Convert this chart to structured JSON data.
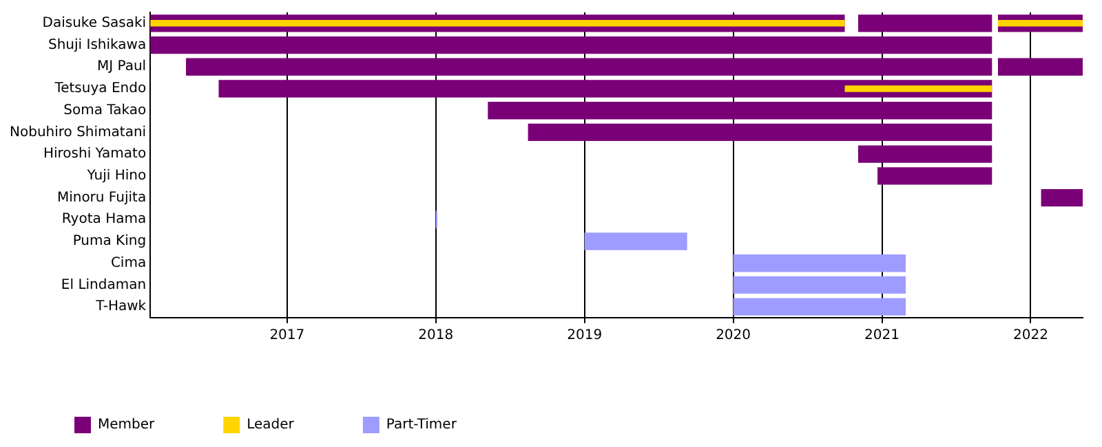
{
  "chart_data": {
    "type": "bar",
    "orientation": "horizontal",
    "categories": [
      "Daisuke Sasaki",
      "Shuji Ishikawa",
      "MJ Paul",
      "Tetsuya Endo",
      "Soma Takao",
      "Nobuhiro Shimatani",
      "Hiroshi Yamato",
      "Yuji Hino",
      "Minoru Fujita",
      "Ryota Hama",
      "Puma King",
      "Cima",
      "El Lindaman",
      "T-Hawk"
    ],
    "series": [
      {
        "name": "Member",
        "color": "#7a0077",
        "base": [
          2016.08,
          2016.08,
          2016.32,
          2016.54,
          2018.35,
          2018.62,
          2020.84,
          2020.97,
          2022.07,
          null,
          null,
          null,
          null,
          null
        ],
        "values": [
          4.67,
          5.66,
          5.42,
          5.2,
          3.39,
          3.12,
          0.9,
          0.77,
          0.28,
          null,
          null,
          null,
          null,
          null
        ]
      },
      {
        "color": "#7a0077",
        "base": [
          2020.84,
          null,
          2021.78,
          null,
          null,
          null,
          null,
          null,
          null,
          null,
          null,
          null,
          null,
          null
        ],
        "values": [
          0.9,
          null,
          0.57,
          null,
          null,
          null,
          null,
          null,
          null,
          null,
          null,
          null,
          null,
          null
        ]
      },
      {
        "color": "#7a0077",
        "base": [
          2021.78,
          null,
          null,
          null,
          null,
          null,
          null,
          null,
          null,
          null,
          null,
          null,
          null,
          null
        ],
        "values": [
          0.57,
          null,
          null,
          null,
          null,
          null,
          null,
          null,
          null,
          null,
          null,
          null,
          null,
          null
        ]
      },
      {
        "name": "Leader",
        "color": "#ffd500",
        "base": [
          2016.08,
          null,
          null,
          2020.75,
          null,
          null,
          null,
          null,
          null,
          null,
          null,
          null,
          null,
          null
        ],
        "values": [
          4.67,
          null,
          null,
          0.99,
          null,
          null,
          null,
          null,
          null,
          null,
          null,
          null,
          null,
          null
        ]
      },
      {
        "color": "#ffd500",
        "base": [
          2021.78,
          null,
          null,
          null,
          null,
          null,
          null,
          null,
          null,
          null,
          null,
          null,
          null,
          null
        ],
        "values": [
          0.57,
          null,
          null,
          null,
          null,
          null,
          null,
          null,
          null,
          null,
          null,
          null,
          null,
          null
        ]
      },
      {
        "name": "Part-Timer",
        "color": "#9f9cff",
        "base": [
          null,
          null,
          null,
          null,
          null,
          null,
          null,
          null,
          null,
          2018.0,
          2019.0,
          2020.0,
          2020.0,
          2020.0
        ],
        "values": [
          null,
          null,
          null,
          null,
          null,
          null,
          null,
          null,
          null,
          0.01,
          0.69,
          1.16,
          1.16,
          1.16
        ]
      }
    ],
    "xlim": [
      2016.08,
      2022.35
    ],
    "xticks": [
      2017,
      2018,
      2019,
      2020,
      2021,
      2022
    ],
    "grid": "x",
    "legend": "bottom left"
  }
}
